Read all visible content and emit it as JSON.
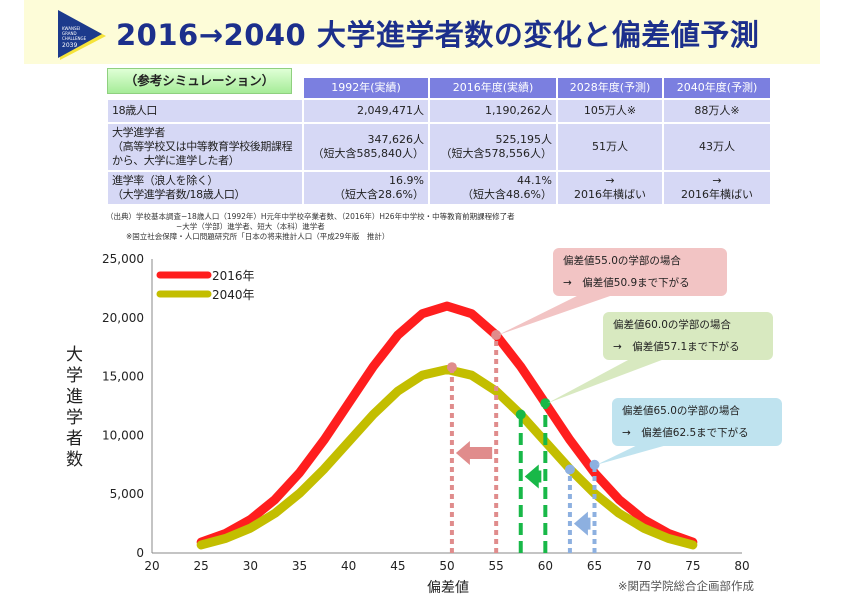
{
  "header": {
    "title": "2016→2040 大学進学者数の変化と偏差値予測",
    "logo_text": "KWANSEI GRAND CHALLENGE 2039"
  },
  "table": {
    "corner": "（参考シミュレーション）",
    "columns": [
      "1992年(実績)",
      "2016年度(実績)",
      "2028年度(予測)",
      "2040年度(予測)"
    ],
    "rows": [
      {
        "label": [
          "18歳人口"
        ],
        "cells": [
          [
            "2,049,471人"
          ],
          [
            "1,190,262人"
          ],
          [
            "105万人※"
          ],
          [
            "88万人※"
          ]
        ]
      },
      {
        "label": [
          "大学進学者",
          "（高等学校又は中等教育学校後期課程",
          "から、大学に進学した者）"
        ],
        "cells": [
          [
            "347,626人",
            "（短大含585,840人）"
          ],
          [
            "525,195人",
            "（短大含578,556人）"
          ],
          [
            "51万人"
          ],
          [
            "43万人"
          ]
        ]
      },
      {
        "label": [
          "進学率（浪人を除く）",
          "（大学進学者数/18歳人口）"
        ],
        "cells": [
          [
            "16.9%",
            "（短大含28.6%）"
          ],
          [
            "44.1%",
            "（短大含48.6%）"
          ],
          [
            "→",
            "2016年横ばい"
          ],
          [
            "→",
            "2016年横ばい"
          ]
        ]
      }
    ]
  },
  "notes": [
    "（出典）学校基本調査−18歳人口（1992年）H元年中学校卒業者数、（2016年）H26年中学校・中等教育前期課程修了者",
    "−大学（学部）進学者、短大（本科）進学者",
    "※国立社会保障・人口問題研究所「日本の将来推計人口（平成29年版　推計）"
  ],
  "credit": "※関西学院総合企画部作成",
  "chart_data": {
    "type": "line",
    "xlabel": "偏差値",
    "ylabel": "大学進学者数",
    "xlim": [
      20,
      80
    ],
    "ylim": [
      0,
      25000
    ],
    "xticks": [
      20,
      25,
      30,
      35,
      40,
      45,
      50,
      55,
      60,
      65,
      70,
      75,
      80
    ],
    "yticks": [
      0,
      5000,
      10000,
      15000,
      20000,
      25000
    ],
    "ytick_labels": [
      "0",
      "5,000",
      "10,000",
      "15,000",
      "20,000",
      "25,000"
    ],
    "x": [
      25,
      27.5,
      30,
      32.5,
      35,
      37.5,
      40,
      42.5,
      45,
      47.5,
      50,
      52.5,
      55,
      57.5,
      60,
      62.5,
      65,
      67.5,
      70,
      72.5,
      75
    ],
    "series": [
      {
        "name": "2016年",
        "color": "#ff1e1e",
        "values": [
          922,
          1671,
          2842,
          4542,
          6818,
          9613,
          12737,
          15852,
          18533,
          20353,
          21000,
          20353,
          18533,
          15852,
          12737,
          9613,
          6818,
          4542,
          2842,
          1671,
          922
        ]
      },
      {
        "name": "2040年",
        "color": "#c3be00",
        "values": [
          685,
          1242,
          2111,
          3374,
          5065,
          7141,
          9462,
          11776,
          13767,
          15120,
          15600,
          15120,
          13767,
          11776,
          9462,
          7141,
          5065,
          3374,
          2111,
          1242,
          685
        ]
      }
    ],
    "annotations": [
      {
        "from": [
          55,
          18533
        ],
        "to": [
          50.5,
          15800
        ],
        "color": "#e08c8c",
        "bg": "#f2c4c4",
        "arrow_y": 8500,
        "lines": [
          "偏差値55.0の学部の場合",
          "→　偏差値50.9まで下がる"
        ]
      },
      {
        "from": [
          60,
          12737
        ],
        "to": [
          57.5,
          11776
        ],
        "color": "#18b848",
        "bg": "#d8e9c0",
        "arrow_y": 6500,
        "lines": [
          "偏差値60.0の学部の場合",
          "→　偏差値57.1まで下がる"
        ]
      },
      {
        "from": [
          65,
          7500
        ],
        "to": [
          62.5,
          7100
        ],
        "color": "#8db0e0",
        "bg": "#bfe3ef",
        "arrow_y": 2500,
        "lines": [
          "偏差値65.0の学部の場合",
          "→　偏差値62.5まで下がる"
        ]
      }
    ]
  }
}
